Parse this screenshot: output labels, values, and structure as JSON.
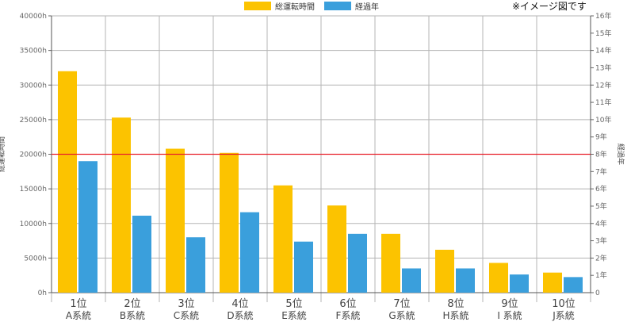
{
  "note": "※イメージ図です",
  "colors": {
    "hours": "#fcc300",
    "years": "#3a9fdc",
    "threshold": "#e8202a",
    "grid": "#b5b5b5"
  },
  "chart_data": {
    "type": "bar",
    "categories": [
      [
        "1位",
        "A系統"
      ],
      [
        "2位",
        "B系統"
      ],
      [
        "3位",
        "C系統"
      ],
      [
        "4位",
        "D系統"
      ],
      [
        "5位",
        "E系統"
      ],
      [
        "6位",
        "F系統"
      ],
      [
        "7位",
        "G系統"
      ],
      [
        "8位",
        "H系統"
      ],
      [
        "9位",
        "I 系統"
      ],
      [
        "10位",
        "J系統"
      ]
    ],
    "series": [
      {
        "name": "総運転時間",
        "axis": "left",
        "values": [
          32000,
          25300,
          20800,
          20200,
          15500,
          12600,
          8500,
          6200,
          4300,
          2900
        ]
      },
      {
        "name": "経過年",
        "axis": "right",
        "values": [
          7.6,
          4.45,
          3.2,
          4.65,
          2.95,
          3.4,
          1.4,
          1.4,
          1.05,
          0.9
        ]
      }
    ],
    "y_left": {
      "label": "総運転時間",
      "range": [
        0,
        40000
      ],
      "ticks": [
        "0h",
        "5000h",
        "10000h",
        "15000h",
        "20000h",
        "25000h",
        "30000h",
        "35000h",
        "40000h"
      ]
    },
    "y_right": {
      "label": "経過年",
      "range": [
        0,
        16
      ],
      "ticks": [
        "0",
        "1年",
        "2年",
        "3年",
        "4年",
        "5年",
        "6年",
        "7年",
        "8年",
        "9年",
        "10年",
        "11年",
        "12年",
        "13年",
        "14年",
        "15年",
        "16年"
      ]
    },
    "threshold": {
      "axis": "left",
      "value": 20000
    },
    "grid": true,
    "legend_position": "top-center"
  }
}
